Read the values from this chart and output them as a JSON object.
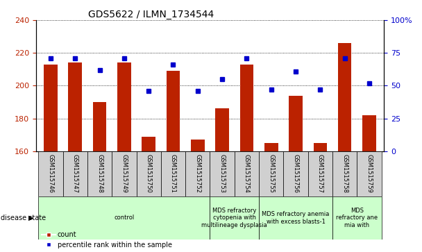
{
  "title": "GDS5622 / ILMN_1734544",
  "samples": [
    "GSM1515746",
    "GSM1515747",
    "GSM1515748",
    "GSM1515749",
    "GSM1515750",
    "GSM1515751",
    "GSM1515752",
    "GSM1515753",
    "GSM1515754",
    "GSM1515755",
    "GSM1515756",
    "GSM1515757",
    "GSM1515758",
    "GSM1515759"
  ],
  "counts": [
    213,
    214,
    190,
    214,
    169,
    209,
    167,
    186,
    213,
    165,
    194,
    165,
    226,
    182
  ],
  "percentiles": [
    71,
    71,
    62,
    71,
    46,
    66,
    46,
    55,
    71,
    47,
    61,
    47,
    71,
    52
  ],
  "ylim_left": [
    160,
    240
  ],
  "ylim_right": [
    0,
    100
  ],
  "yticks_left": [
    160,
    180,
    200,
    220,
    240
  ],
  "yticks_right": [
    0,
    25,
    50,
    75,
    100
  ],
  "bar_color": "#bb2200",
  "dot_color": "#0000cc",
  "disease_groups": [
    {
      "label": "control",
      "start": 0,
      "end": 7,
      "color": "#ccffcc"
    },
    {
      "label": "MDS refractory\ncytopenia with\nmultilineage dysplasia",
      "start": 7,
      "end": 9,
      "color": "#ccffcc"
    },
    {
      "label": "MDS refractory anemia\nwith excess blasts-1",
      "start": 9,
      "end": 12,
      "color": "#ccffcc"
    },
    {
      "label": "MDS\nrefractory ane\nmia with",
      "start": 12,
      "end": 14,
      "color": "#ccffcc"
    }
  ],
  "legend_count": "count",
  "legend_percentile": "percentile rank within the sample",
  "bar_width": 0.55,
  "title_fontsize": 10,
  "tick_fontsize": 8,
  "sample_fontsize": 6,
  "disease_fontsize": 6,
  "legend_fontsize": 7
}
